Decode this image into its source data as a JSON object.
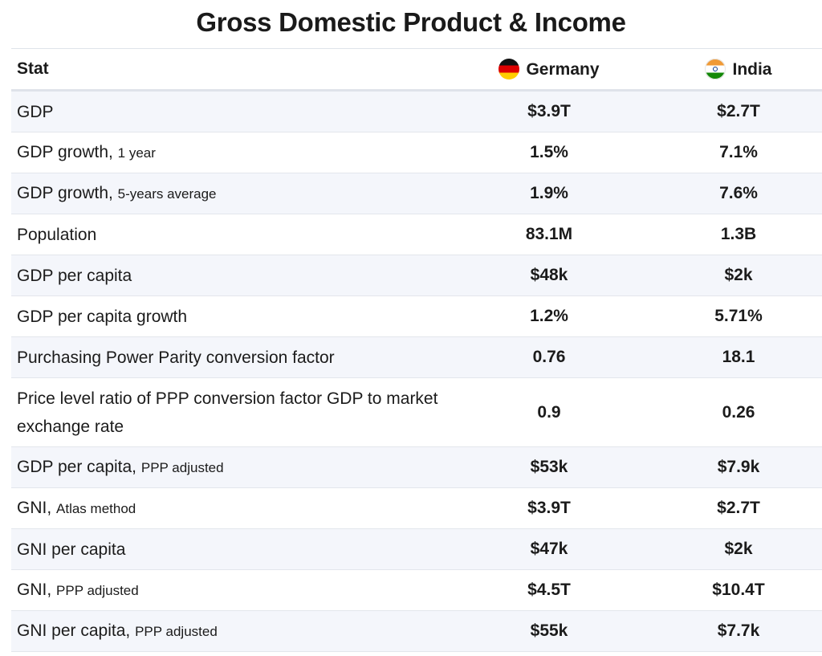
{
  "title": "Gross Domestic Product & Income",
  "header": {
    "stat": "Stat",
    "country_a": "Germany",
    "country_b": "India"
  },
  "rows": [
    {
      "stat": "GDP",
      "sub": "",
      "a": "$3.9T",
      "b": "$2.7T"
    },
    {
      "stat": "GDP growth,",
      "sub": "1 year",
      "a": "1.5%",
      "b": "7.1%"
    },
    {
      "stat": "GDP growth,",
      "sub": "5-years average",
      "a": "1.9%",
      "b": "7.6%"
    },
    {
      "stat": "Population",
      "sub": "",
      "a": "83.1M",
      "b": "1.3B"
    },
    {
      "stat": "GDP per capita",
      "sub": "",
      "a": "$48k",
      "b": "$2k"
    },
    {
      "stat": "GDP per capita growth",
      "sub": "",
      "a": "1.2%",
      "b": "5.71%"
    },
    {
      "stat": "Purchasing Power Parity conversion factor",
      "sub": "",
      "a": "0.76",
      "b": "18.1"
    },
    {
      "stat": "Price level ratio of PPP conversion factor GDP to market exchange rate",
      "sub": "",
      "a": "0.9",
      "b": "0.26"
    },
    {
      "stat": "GDP per capita,",
      "sub": "PPP adjusted",
      "a": "$53k",
      "b": "$7.9k"
    },
    {
      "stat": "GNI,",
      "sub": "Atlas method",
      "a": "$3.9T",
      "b": "$2.7T"
    },
    {
      "stat": "GNI per capita",
      "sub": "",
      "a": "$47k",
      "b": "$2k"
    },
    {
      "stat": "GNI,",
      "sub": "PPP adjusted",
      "a": "$4.5T",
      "b": "$10.4T"
    },
    {
      "stat": "GNI per capita,",
      "sub": "PPP adjusted",
      "a": "$55k",
      "b": "$7.7k"
    }
  ]
}
